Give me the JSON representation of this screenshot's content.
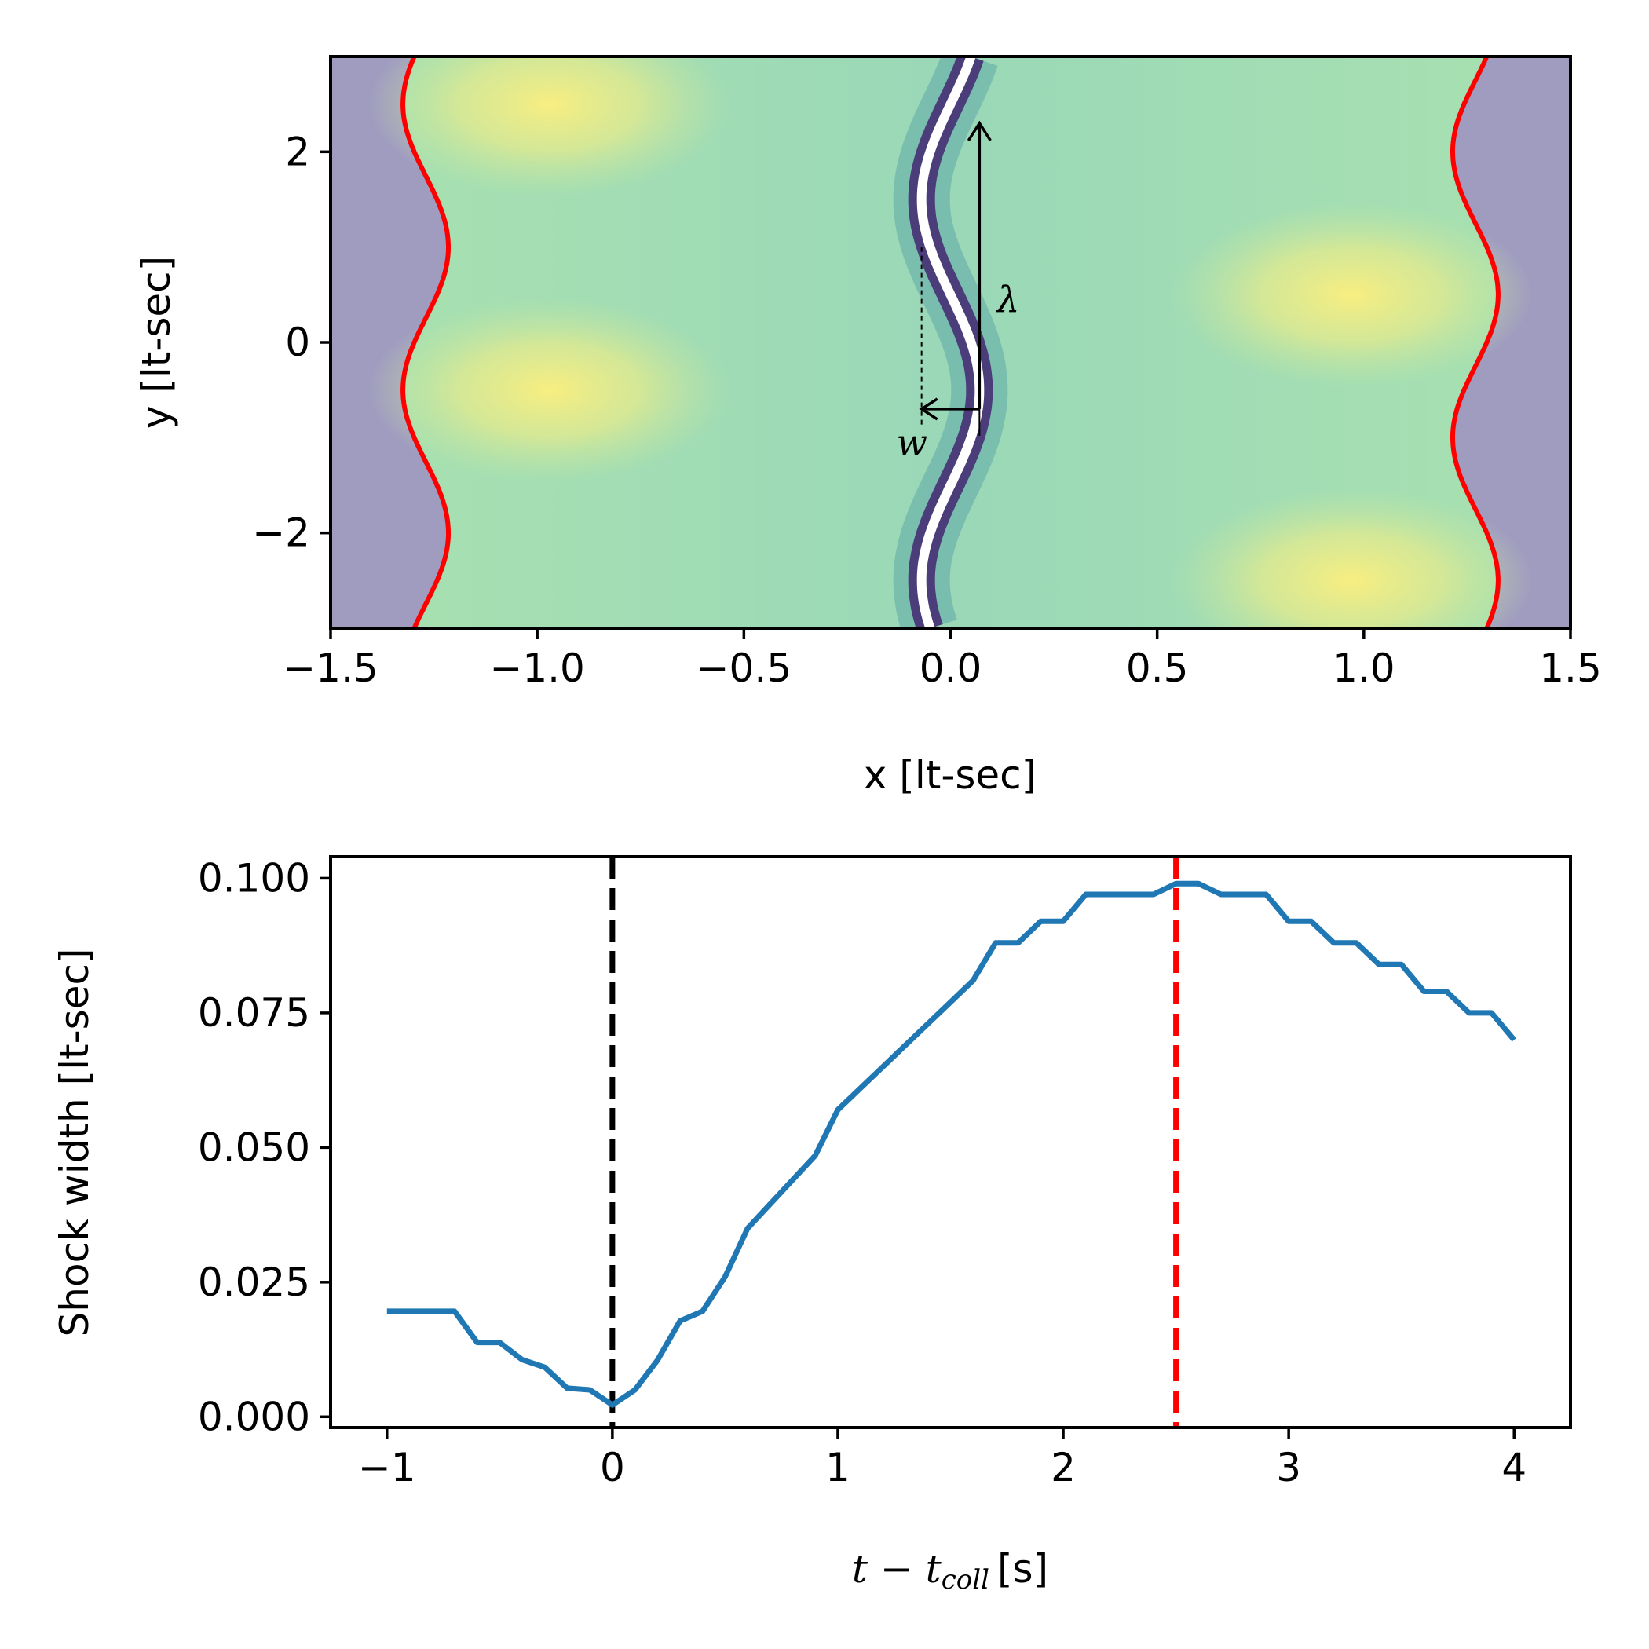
{
  "colors": {
    "plasma_low": "#a09cc0",
    "plasma_high": "#f5ef86",
    "boundary": "#ff0000",
    "line": "#1f77b4",
    "collision_marker": "#000000",
    "max_marker": "#ff0000",
    "arrow": "#000000"
  },
  "chart_data": [
    {
      "type": "heatmap",
      "xlabel": "x [lt-sec]",
      "ylabel": "y [lt-sec]",
      "xlim": [
        -1.5,
        1.5
      ],
      "ylim": [
        -3,
        3
      ],
      "xticks": [
        -1.5,
        -1.0,
        -0.5,
        0.0,
        0.5,
        1.0,
        1.5
      ],
      "xtick_labels": [
        "−1.5",
        "−1.0",
        "−0.5",
        "0.0",
        "0.5",
        "1.0",
        "1.5"
      ],
      "yticks": [
        2,
        0,
        -2
      ],
      "ytick_labels": [
        "2",
        "0",
        "−2"
      ],
      "annotations": [
        {
          "label": "λ",
          "kind": "arrow",
          "x": 0.07,
          "y_start": -0.7,
          "y_end": 2.3
        },
        {
          "label": "w",
          "kind": "arrow",
          "x_start": 0.07,
          "x_end": -0.07,
          "y": -0.7
        }
      ],
      "shock_center": {
        "amplitude": 0.07,
        "period": 4.0,
        "phase": -0.5
      },
      "boundaries": [
        {
          "name": "left",
          "center": -1.27,
          "amplitude": 0.055,
          "period": 3.0,
          "phase": -0.5
        },
        {
          "name": "right",
          "center": 1.27,
          "amplitude": 0.055,
          "period": 3.0,
          "phase": 0.5
        }
      ],
      "bright_spots": [
        {
          "x": -0.97,
          "y": 2.5
        },
        {
          "x": -0.97,
          "y": -0.5
        },
        {
          "x": 0.97,
          "y": 0.5
        },
        {
          "x": 0.97,
          "y": -2.5
        }
      ]
    },
    {
      "type": "line",
      "xlabel": "t − t_coll [s]",
      "xlabel_main": "t − t",
      "xlabel_sub": "coll",
      "xlabel_unit": "[s]",
      "ylabel": "Shock width [lt-sec]",
      "xlim": [
        -1.25,
        4.25
      ],
      "ylim": [
        -0.002,
        0.104
      ],
      "xticks": [
        -1,
        0,
        1,
        2,
        3,
        4
      ],
      "xtick_labels": [
        "−1",
        "0",
        "1",
        "2",
        "3",
        "4"
      ],
      "yticks": [
        0.0,
        0.025,
        0.05,
        0.075,
        0.1
      ],
      "ytick_labels": [
        "0.000",
        "0.025",
        "0.050",
        "0.075",
        "0.100"
      ],
      "series": [
        {
          "name": "Shock width",
          "x": [
            -1.0,
            -0.7,
            -0.6,
            -0.5,
            -0.4,
            -0.3,
            -0.2,
            -0.1,
            0.0,
            0.1,
            0.2,
            0.3,
            0.4,
            0.5,
            0.6,
            0.7,
            0.8,
            0.9,
            1.0,
            1.1,
            1.2,
            1.3,
            1.4,
            1.5,
            1.6,
            1.7,
            1.8,
            1.9,
            2.0,
            2.1,
            2.2,
            2.3,
            2.4,
            2.5,
            2.6,
            2.7,
            2.8,
            2.9,
            3.0,
            3.1,
            3.2,
            3.3,
            3.4,
            3.5,
            3.6,
            3.7,
            3.8,
            3.9,
            4.0
          ],
          "values": [
            0.0196,
            0.0196,
            0.0138,
            0.0138,
            0.0106,
            0.0092,
            0.0053,
            0.005,
            0.0022,
            0.005,
            0.0105,
            0.0178,
            0.0196,
            0.026,
            0.035,
            0.0395,
            0.044,
            0.0485,
            0.057,
            0.061,
            0.065,
            0.069,
            0.073,
            0.077,
            0.081,
            0.088,
            0.088,
            0.092,
            0.092,
            0.097,
            0.097,
            0.097,
            0.097,
            0.099,
            0.099,
            0.097,
            0.097,
            0.097,
            0.092,
            0.092,
            0.088,
            0.088,
            0.084,
            0.084,
            0.079,
            0.079,
            0.075,
            0.075,
            0.07
          ]
        }
      ],
      "vlines": [
        {
          "name": "collision",
          "x": 0.0,
          "style": "dashed",
          "color": "#000000"
        },
        {
          "name": "max-width",
          "x": 2.5,
          "style": "dashed",
          "color": "#ff0000"
        }
      ]
    }
  ]
}
